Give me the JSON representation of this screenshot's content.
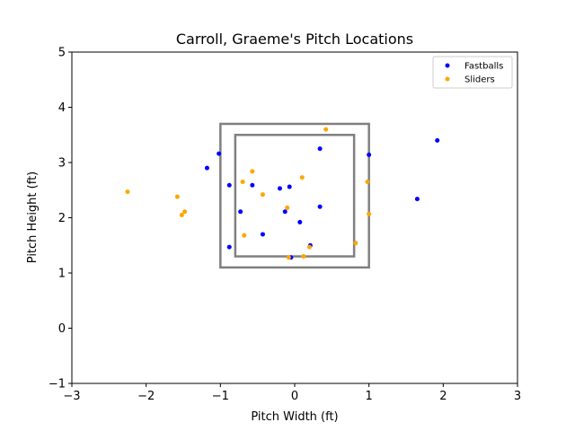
{
  "chart_data": {
    "type": "scatter",
    "title": "Carroll, Graeme's Pitch Locations",
    "xlabel": "Pitch Width (ft)",
    "ylabel": "Pitch Height (ft)",
    "xlim": [
      -3,
      3
    ],
    "ylim": [
      -1,
      5
    ],
    "xticks": [
      -3,
      -2,
      -1,
      0,
      1,
      2,
      3
    ],
    "yticks": [
      -1,
      0,
      1,
      2,
      3,
      4,
      5
    ],
    "xtick_labels": [
      "−3",
      "−2",
      "−1",
      "0",
      "1",
      "2",
      "3"
    ],
    "ytick_labels": [
      "−1",
      "0",
      "1",
      "2",
      "3",
      "4",
      "5"
    ],
    "grid": false,
    "legend_position": "top-right",
    "zones": [
      {
        "x": [
          -1.0,
          1.0
        ],
        "y": [
          1.1,
          3.7
        ],
        "color": "#808080"
      },
      {
        "x": [
          -0.8,
          0.8
        ],
        "y": [
          1.3,
          3.5
        ],
        "color": "#808080"
      }
    ],
    "series": [
      {
        "name": "Fastballs",
        "color": "#0000ff",
        "points": [
          [
            -1.02,
            3.16
          ],
          [
            -1.18,
            2.9
          ],
          [
            -0.88,
            2.59
          ],
          [
            -0.57,
            2.59
          ],
          [
            -0.73,
            2.11
          ],
          [
            -0.88,
            1.47
          ],
          [
            -0.43,
            1.7
          ],
          [
            -0.2,
            2.53
          ],
          [
            -0.07,
            2.56
          ],
          [
            -0.13,
            2.11
          ],
          [
            0.07,
            1.92
          ],
          [
            0.34,
            3.25
          ],
          [
            0.34,
            2.2
          ],
          [
            0.21,
            1.5
          ],
          [
            -0.05,
            1.28
          ],
          [
            1.0,
            3.14
          ],
          [
            1.65,
            2.34
          ],
          [
            1.92,
            3.4
          ]
        ]
      },
      {
        "name": "Sliders",
        "color": "#ffa500",
        "points": [
          [
            -2.25,
            2.47
          ],
          [
            -1.58,
            2.38
          ],
          [
            -1.52,
            2.05
          ],
          [
            -1.48,
            2.11
          ],
          [
            -0.7,
            2.65
          ],
          [
            -0.57,
            2.84
          ],
          [
            -0.43,
            2.42
          ],
          [
            -0.68,
            1.68
          ],
          [
            -0.1,
            2.18
          ],
          [
            -0.08,
            1.28
          ],
          [
            0.1,
            2.73
          ],
          [
            0.12,
            1.3
          ],
          [
            0.2,
            1.47
          ],
          [
            0.42,
            3.6
          ],
          [
            0.82,
            1.54
          ],
          [
            0.98,
            2.65
          ],
          [
            1.0,
            2.07
          ]
        ]
      }
    ]
  }
}
